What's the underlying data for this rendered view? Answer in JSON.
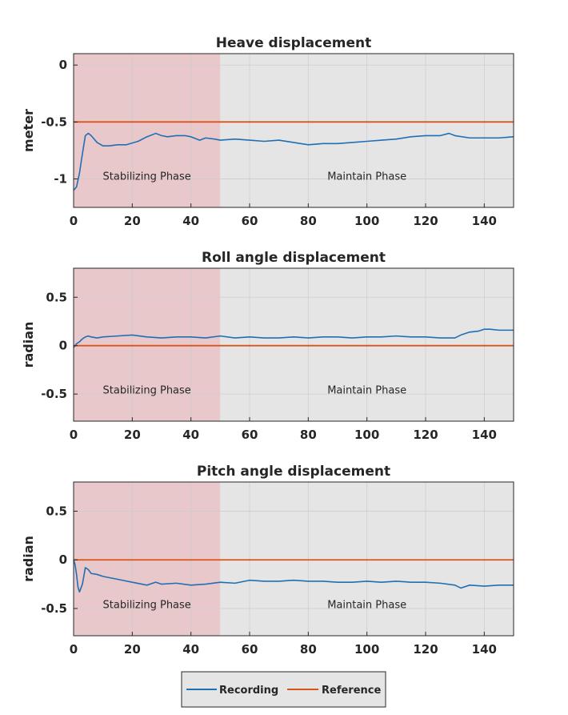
{
  "colors": {
    "stabilizing_bg": "#e8c8ca",
    "maintain_bg": "#e5e5e5",
    "recording": "#1f6fb5",
    "reference": "#d9541a",
    "grid": "#cdcdcd",
    "axis": "#262626"
  },
  "chart_data": [
    {
      "type": "line",
      "title": "Heave displacement",
      "ylabel": "meter",
      "xlim": [
        0,
        150
      ],
      "ylim": [
        -1.25,
        0.1
      ],
      "xticks": [
        0,
        20,
        40,
        60,
        80,
        100,
        120,
        140
      ],
      "xtick_labels": [
        "0",
        "20",
        "40",
        "60",
        "80",
        "100",
        "120",
        "140"
      ],
      "yticks": [
        0,
        -0.5,
        -1
      ],
      "ytick_labels": [
        "0",
        "-0.5",
        "-1"
      ],
      "grid": true,
      "phases": [
        {
          "label": "Stabilizing Phase",
          "x_start": 0,
          "x_end": 50
        },
        {
          "label": "Maintain Phase",
          "x_start": 50,
          "x_end": 150
        }
      ],
      "series": [
        {
          "name": "Recording",
          "x": [
            0,
            1,
            2,
            3,
            4,
            5,
            6,
            8,
            10,
            12,
            15,
            18,
            22,
            25,
            28,
            30,
            32,
            35,
            38,
            40,
            43,
            45,
            48,
            50,
            55,
            60,
            65,
            70,
            75,
            80,
            85,
            90,
            95,
            100,
            105,
            110,
            115,
            120,
            125,
            128,
            130,
            135,
            140,
            145,
            150
          ],
          "y": [
            -1.1,
            -1.07,
            -0.95,
            -0.78,
            -0.62,
            -0.6,
            -0.62,
            -0.68,
            -0.71,
            -0.71,
            -0.7,
            -0.7,
            -0.67,
            -0.63,
            -0.6,
            -0.62,
            -0.63,
            -0.62,
            -0.62,
            -0.63,
            -0.66,
            -0.64,
            -0.65,
            -0.66,
            -0.65,
            -0.66,
            -0.67,
            -0.66,
            -0.68,
            -0.7,
            -0.69,
            -0.69,
            -0.68,
            -0.67,
            -0.66,
            -0.65,
            -0.63,
            -0.62,
            -0.62,
            -0.6,
            -0.62,
            -0.64,
            -0.64,
            -0.64,
            -0.63
          ]
        },
        {
          "name": "Reference",
          "x": [
            0,
            150
          ],
          "y": [
            -0.5,
            -0.5
          ]
        }
      ]
    },
    {
      "type": "line",
      "title": "Roll angle displacement",
      "ylabel": "radian",
      "xlim": [
        0,
        150
      ],
      "ylim": [
        -0.78,
        0.8
      ],
      "xticks": [
        0,
        20,
        40,
        60,
        80,
        100,
        120,
        140
      ],
      "xtick_labels": [
        "0",
        "20",
        "40",
        "60",
        "80",
        "100",
        "120",
        "140"
      ],
      "yticks": [
        0.5,
        0,
        -0.5
      ],
      "ytick_labels": [
        "0.5",
        "0",
        "-0.5"
      ],
      "grid": true,
      "phases": [
        {
          "label": "Stabilizing Phase",
          "x_start": 0,
          "x_end": 50
        },
        {
          "label": "Maintain Phase",
          "x_start": 50,
          "x_end": 150
        }
      ],
      "series": [
        {
          "name": "Recording",
          "x": [
            0,
            1,
            2,
            3,
            4,
            5,
            6,
            8,
            10,
            15,
            20,
            25,
            30,
            35,
            40,
            45,
            50,
            55,
            60,
            65,
            70,
            75,
            80,
            85,
            90,
            95,
            100,
            105,
            110,
            115,
            120,
            125,
            130,
            132,
            135,
            138,
            140,
            142,
            145,
            150
          ],
          "y": [
            -0.02,
            0.02,
            0.04,
            0.07,
            0.09,
            0.1,
            0.09,
            0.08,
            0.09,
            0.1,
            0.11,
            0.09,
            0.08,
            0.09,
            0.09,
            0.08,
            0.1,
            0.08,
            0.09,
            0.08,
            0.08,
            0.09,
            0.08,
            0.09,
            0.09,
            0.08,
            0.09,
            0.09,
            0.1,
            0.09,
            0.09,
            0.08,
            0.08,
            0.11,
            0.14,
            0.15,
            0.17,
            0.17,
            0.16,
            0.16
          ]
        },
        {
          "name": "Reference",
          "x": [
            0,
            150
          ],
          "y": [
            0,
            0
          ]
        }
      ]
    },
    {
      "type": "line",
      "title": "Pitch angle displacement",
      "ylabel": "radian",
      "xlim": [
        0,
        150
      ],
      "ylim": [
        -0.78,
        0.8
      ],
      "xticks": [
        0,
        20,
        40,
        60,
        80,
        100,
        120,
        140
      ],
      "xtick_labels": [
        "0",
        "20",
        "40",
        "60",
        "80",
        "100",
        "120",
        "140"
      ],
      "yticks": [
        0.5,
        0,
        -0.5
      ],
      "ytick_labels": [
        "0.5",
        "0",
        "-0.5"
      ],
      "grid": true,
      "phases": [
        {
          "label": "Stabilizing Phase",
          "x_start": 0,
          "x_end": 50
        },
        {
          "label": "Maintain Phase",
          "x_start": 50,
          "x_end": 150
        }
      ],
      "series": [
        {
          "name": "Recording",
          "x": [
            0,
            0.5,
            1,
            1.5,
            2,
            3,
            4,
            5,
            6,
            8,
            10,
            15,
            20,
            25,
            28,
            30,
            35,
            40,
            45,
            50,
            55,
            60,
            65,
            70,
            75,
            80,
            85,
            90,
            95,
            100,
            105,
            110,
            115,
            120,
            125,
            130,
            132,
            135,
            140,
            145,
            150
          ],
          "y": [
            0,
            -0.05,
            -0.15,
            -0.28,
            -0.33,
            -0.25,
            -0.08,
            -0.1,
            -0.14,
            -0.15,
            -0.17,
            -0.2,
            -0.23,
            -0.26,
            -0.23,
            -0.25,
            -0.24,
            -0.26,
            -0.25,
            -0.23,
            -0.24,
            -0.21,
            -0.22,
            -0.22,
            -0.21,
            -0.22,
            -0.22,
            -0.23,
            -0.23,
            -0.22,
            -0.23,
            -0.22,
            -0.23,
            -0.23,
            -0.24,
            -0.26,
            -0.29,
            -0.26,
            -0.27,
            -0.26,
            -0.26
          ]
        },
        {
          "name": "Reference",
          "x": [
            0,
            150
          ],
          "y": [
            0,
            0
          ]
        }
      ]
    }
  ],
  "legend": {
    "placement": "bottom-center",
    "entries": [
      {
        "label": "Recording",
        "series": "Recording"
      },
      {
        "label": "Reference",
        "series": "Reference"
      }
    ]
  }
}
